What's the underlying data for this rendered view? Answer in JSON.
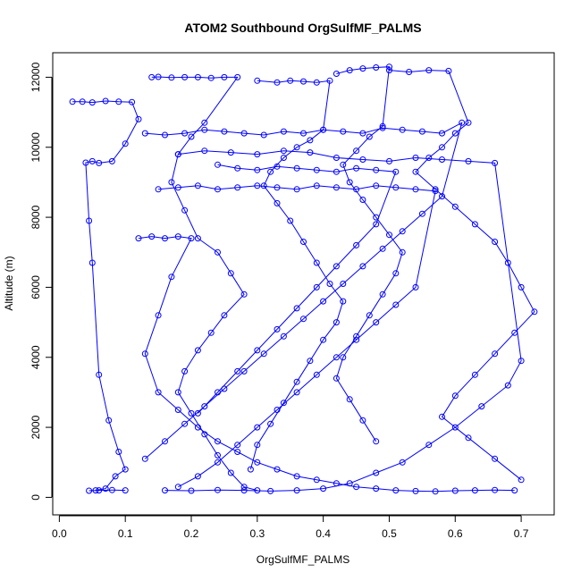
{
  "chart_data": {
    "type": "scatter",
    "title": "ATOM2 Southbound OrgSulfMF_PALMS",
    "xlabel": "OrgSulfMF_PALMS",
    "ylabel": "Altitude (m)",
    "xlim": [
      -0.01,
      0.75
    ],
    "ylim": [
      -500,
      12700
    ],
    "x_ticks": [
      0.0,
      0.1,
      0.2,
      0.3,
      0.4,
      0.5,
      0.6,
      0.7
    ],
    "x_tick_labels": [
      "0.0",
      "0.1",
      "0.2",
      "0.3",
      "0.4",
      "0.5",
      "0.6",
      "0.7"
    ],
    "y_ticks": [
      0,
      2000,
      4000,
      6000,
      8000,
      10000,
      12000
    ],
    "y_tick_labels": [
      "0",
      "2000",
      "4000",
      "6000",
      "8000",
      "10000",
      "12000"
    ],
    "grid": false,
    "legend": "none",
    "series_color": "#0000ff",
    "marker": "open-circle",
    "connected": true,
    "series": [
      {
        "x": [
          0.02,
          0.035,
          0.05,
          0.07,
          0.09,
          0.11,
          0.12,
          0.1,
          0.08,
          0.06,
          0.05,
          0.04,
          0.045,
          0.05,
          0.06,
          0.075,
          0.09,
          0.1,
          0.085,
          0.07,
          0.055,
          0.045,
          0.06,
          0.08,
          0.1
        ],
        "y": [
          11300,
          11300,
          11280,
          11320,
          11300,
          11290,
          10800,
          10100,
          9600,
          9550,
          9600,
          9560,
          7900,
          6700,
          3500,
          2200,
          1300,
          800,
          600,
          250,
          200,
          190,
          200,
          210,
          200
        ]
      },
      {
        "x": [
          0.14,
          0.15,
          0.17,
          0.19,
          0.21,
          0.23,
          0.25,
          0.27,
          0.22,
          0.2,
          0.18,
          0.17,
          0.19,
          0.21,
          0.24,
          0.26,
          0.28,
          0.25,
          0.23,
          0.21,
          0.19,
          0.18,
          0.2,
          0.22,
          0.24,
          0.26,
          0.28,
          0.3
        ],
        "y": [
          12000,
          12010,
          11990,
          12000,
          12000,
          11980,
          12000,
          12000,
          10700,
          10300,
          9800,
          9000,
          8200,
          7400,
          7000,
          6400,
          5800,
          5200,
          4700,
          4200,
          3600,
          3000,
          2400,
          1800,
          1200,
          700,
          300,
          200
        ]
      },
      {
        "x": [
          0.3,
          0.33,
          0.35,
          0.37,
          0.39,
          0.41,
          0.4,
          0.38,
          0.36,
          0.34,
          0.32,
          0.31,
          0.33,
          0.35,
          0.37,
          0.39,
          0.41,
          0.43,
          0.42,
          0.4,
          0.38,
          0.36,
          0.34,
          0.32,
          0.3,
          0.29
        ],
        "y": [
          11900,
          11850,
          11900,
          11880,
          11850,
          11900,
          10500,
          10200,
          10000,
          9700,
          9300,
          8900,
          8400,
          7900,
          7300,
          6700,
          6100,
          5600,
          5000,
          4500,
          3900,
          3300,
          2700,
          2100,
          1500,
          800
        ]
      },
      {
        "x": [
          0.42,
          0.44,
          0.46,
          0.48,
          0.5,
          0.49,
          0.47,
          0.45,
          0.43,
          0.44,
          0.46,
          0.48,
          0.5,
          0.52,
          0.51,
          0.49,
          0.47,
          0.45,
          0.43,
          0.42,
          0.44,
          0.46,
          0.48
        ],
        "y": [
          12100,
          12200,
          12250,
          12280,
          12300,
          10600,
          10300,
          9900,
          9500,
          9000,
          8500,
          8000,
          7500,
          7000,
          6400,
          5800,
          5200,
          4600,
          4000,
          3400,
          2800,
          2200,
          1600
        ]
      },
      {
        "x": [
          0.5,
          0.53,
          0.56,
          0.59,
          0.62,
          0.6,
          0.58,
          0.56,
          0.54,
          0.57,
          0.6,
          0.63,
          0.66,
          0.68,
          0.7,
          0.72,
          0.69,
          0.66,
          0.63,
          0.6,
          0.58,
          0.62,
          0.66,
          0.7
        ],
        "y": [
          12200,
          12150,
          12200,
          12180,
          10700,
          10400,
          10000,
          9700,
          9300,
          8800,
          8300,
          7800,
          7300,
          6700,
          6000,
          5300,
          4700,
          4100,
          3500,
          2900,
          2300,
          1700,
          1100,
          500
        ]
      },
      {
        "x": [
          0.18,
          0.22,
          0.26,
          0.3,
          0.34,
          0.38,
          0.42,
          0.46,
          0.5,
          0.54,
          0.58,
          0.62,
          0.66,
          0.7,
          0.68,
          0.64,
          0.6,
          0.56,
          0.52,
          0.48,
          0.44,
          0.4,
          0.36,
          0.32,
          0.28,
          0.24,
          0.2,
          0.16
        ],
        "y": [
          9800,
          9900,
          9850,
          9800,
          9900,
          9850,
          9700,
          9650,
          9600,
          9700,
          9650,
          9600,
          9550,
          3900,
          3200,
          2600,
          2000,
          1500,
          1000,
          700,
          400,
          250,
          200,
          180,
          200,
          210,
          190,
          200
        ]
      },
      {
        "x": [
          0.13,
          0.16,
          0.19,
          0.22,
          0.25,
          0.28,
          0.31,
          0.34,
          0.37,
          0.4,
          0.43,
          0.46,
          0.49,
          0.52,
          0.55,
          0.58,
          0.61,
          0.58,
          0.55,
          0.52,
          0.49,
          0.46,
          0.43,
          0.4,
          0.37,
          0.34,
          0.31,
          0.28,
          0.25,
          0.22,
          0.19,
          0.16,
          0.13
        ],
        "y": [
          10400,
          10350,
          10400,
          10500,
          10450,
          10400,
          10350,
          10450,
          10400,
          10500,
          10450,
          10400,
          10550,
          10500,
          10450,
          10400,
          10700,
          8600,
          8100,
          7600,
          7100,
          6600,
          6100,
          5600,
          5100,
          4600,
          4100,
          3600,
          3100,
          2600,
          2100,
          1600,
          1100
        ]
      },
      {
        "x": [
          0.15,
          0.18,
          0.21,
          0.24,
          0.27,
          0.3,
          0.33,
          0.36,
          0.39,
          0.42,
          0.45,
          0.48,
          0.51,
          0.54,
          0.57,
          0.54,
          0.51,
          0.48,
          0.45,
          0.42,
          0.39,
          0.36,
          0.33,
          0.3,
          0.27,
          0.24,
          0.21,
          0.18
        ],
        "y": [
          8800,
          8850,
          8900,
          8800,
          8850,
          8900,
          8850,
          8800,
          8900,
          8850,
          8800,
          8900,
          8850,
          8800,
          8750,
          6000,
          5500,
          5000,
          4500,
          4000,
          3500,
          3000,
          2500,
          2000,
          1500,
          1000,
          600,
          300
        ]
      },
      {
        "x": [
          0.12,
          0.14,
          0.16,
          0.18,
          0.2,
          0.17,
          0.15,
          0.13,
          0.15,
          0.18,
          0.21,
          0.24,
          0.27,
          0.3,
          0.33,
          0.36,
          0.39,
          0.42,
          0.45,
          0.48,
          0.51,
          0.54,
          0.57,
          0.6,
          0.63,
          0.66,
          0.69
        ],
        "y": [
          7400,
          7450,
          7400,
          7450,
          7400,
          6300,
          5200,
          4100,
          3000,
          2500,
          2000,
          1600,
          1300,
          1000,
          800,
          600,
          500,
          400,
          300,
          250,
          200,
          180,
          170,
          190,
          200,
          210,
          200
        ]
      },
      {
        "x": [
          0.24,
          0.27,
          0.3,
          0.33,
          0.36,
          0.39,
          0.42,
          0.45,
          0.48,
          0.51,
          0.48,
          0.45,
          0.42,
          0.39,
          0.36,
          0.33,
          0.3,
          0.27,
          0.24,
          0.21
        ],
        "y": [
          9500,
          9400,
          9350,
          9450,
          9400,
          9350,
          9300,
          9400,
          9350,
          9300,
          7800,
          7200,
          6600,
          6000,
          5400,
          4800,
          4200,
          3600,
          3000,
          2400
        ]
      }
    ]
  }
}
